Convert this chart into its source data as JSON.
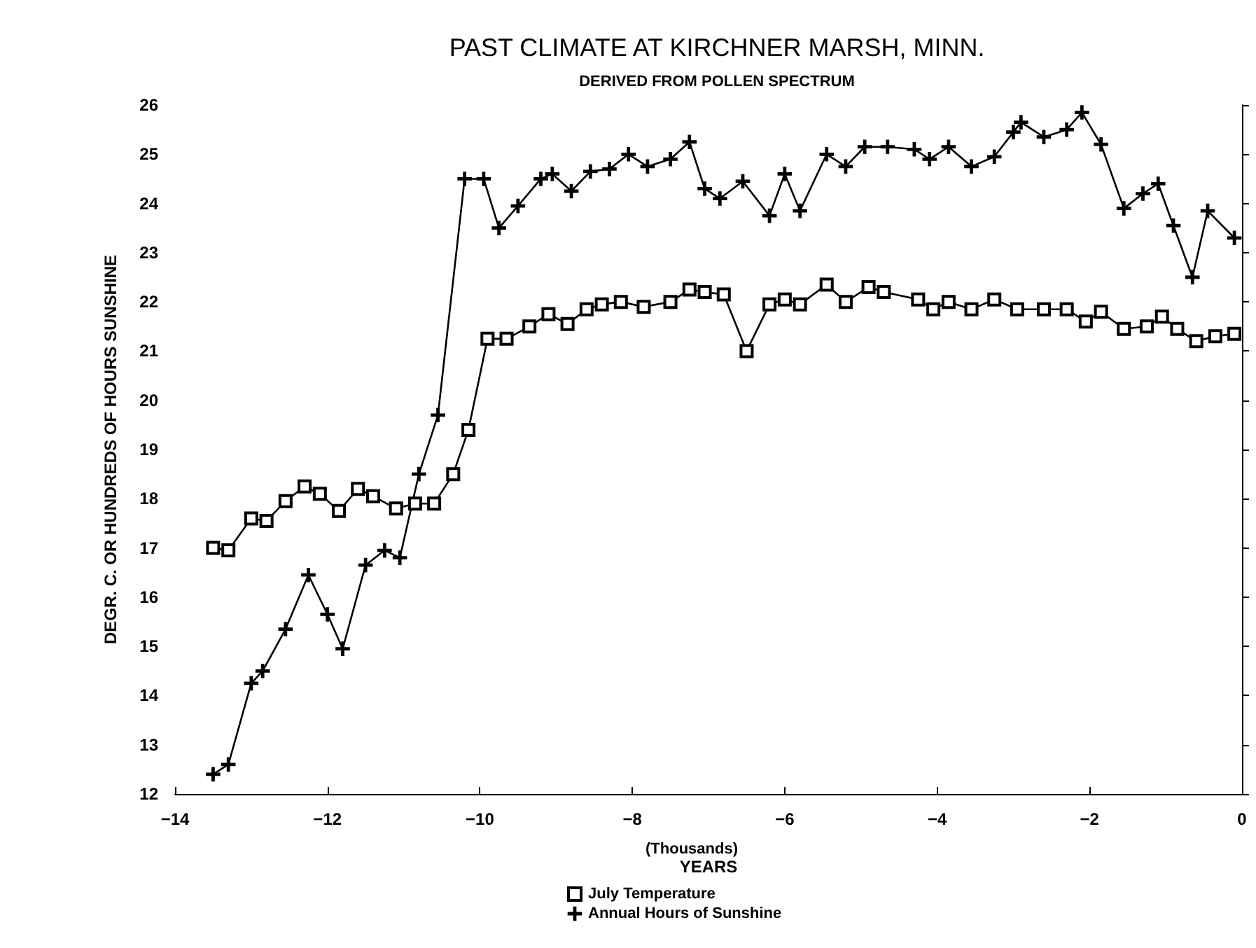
{
  "chart_data": {
    "type": "line",
    "title": "PAST CLIMATE AT KIRCHNER MARSH, MINN.",
    "subtitle": "DERIVED FROM POLLEN SPECTRUM",
    "xlabel": "YEARS",
    "ylabel": "DEGR. C. OR HUNDREDS OF HOURS SUNSHINE",
    "annotations": [
      "(Thousands)"
    ],
    "xlim": [
      -14,
      0
    ],
    "xticks": [
      -14,
      -12,
      -10,
      -8,
      -6,
      -4,
      -2,
      0
    ],
    "ylim": [
      12,
      26
    ],
    "yticks": [
      12,
      13,
      14,
      15,
      16,
      17,
      18,
      19,
      20,
      21,
      22,
      23,
      24,
      25,
      26
    ],
    "grid": false,
    "legend": "bottom",
    "line_style": "solid",
    "series": [
      {
        "name": "July Temperature",
        "color": "#000000",
        "marker": "square",
        "x": [
          -13.5,
          -13.3,
          -13.0,
          -12.8,
          -12.55,
          -12.3,
          -12.1,
          -11.85,
          -11.6,
          -11.4,
          -11.1,
          -10.85,
          -10.6,
          -10.35,
          -10.15,
          -9.9,
          -9.65,
          -9.35,
          -9.1,
          -8.85,
          -8.6,
          -8.4,
          -8.15,
          -7.85,
          -7.5,
          -7.25,
          -7.05,
          -6.8,
          -6.5,
          -6.2,
          -6.0,
          -5.8,
          -5.45,
          -5.2,
          -4.9,
          -4.7,
          -4.25,
          -4.05,
          -3.85,
          -3.55,
          -3.25,
          -2.95,
          -2.6,
          -2.3,
          -2.05,
          -1.85,
          -1.55,
          -1.25,
          -1.05,
          -0.85,
          -0.6,
          -0.35,
          -0.1
        ],
        "values": [
          17.0,
          16.95,
          17.6,
          17.55,
          17.95,
          18.25,
          18.1,
          17.75,
          18.2,
          18.05,
          17.8,
          17.9,
          17.9,
          18.5,
          19.4,
          21.25,
          21.25,
          21.5,
          21.75,
          21.55,
          21.85,
          21.95,
          22.0,
          21.9,
          22.0,
          22.25,
          22.2,
          22.15,
          21.0,
          21.95,
          22.05,
          21.95,
          22.35,
          22.0,
          22.3,
          22.2,
          22.05,
          21.85,
          22.0,
          21.85,
          22.05,
          21.85,
          21.85,
          21.85,
          21.6,
          21.8,
          21.45,
          21.5,
          21.7,
          21.45,
          21.2,
          21.3,
          21.35
        ]
      },
      {
        "name": "Annual Hours of Sunshine",
        "color": "#000000",
        "marker": "cross",
        "x": [
          -13.5,
          -13.3,
          -13.0,
          -12.85,
          -12.55,
          -12.25,
          -12.0,
          -11.8,
          -11.5,
          -11.25,
          -11.05,
          -10.8,
          -10.55,
          -10.2,
          -9.95,
          -9.75,
          -9.5,
          -9.2,
          -9.05,
          -8.8,
          -8.55,
          -8.3,
          -8.05,
          -7.8,
          -7.5,
          -7.25,
          -7.05,
          -6.85,
          -6.55,
          -6.2,
          -6.0,
          -5.8,
          -5.45,
          -5.2,
          -4.95,
          -4.65,
          -4.3,
          -4.1,
          -3.85,
          -3.55,
          -3.25,
          -3.0,
          -2.9,
          -2.6,
          -2.3,
          -2.1,
          -1.85,
          -1.55,
          -1.3,
          -1.1,
          -0.9,
          -0.65,
          -0.45,
          -0.1
        ],
        "values": [
          12.4,
          12.6,
          14.25,
          14.5,
          15.35,
          16.45,
          15.65,
          14.95,
          16.65,
          16.95,
          16.8,
          18.5,
          19.7,
          24.5,
          24.5,
          23.5,
          23.95,
          24.5,
          24.6,
          24.25,
          24.65,
          24.7,
          25.0,
          24.75,
          24.9,
          25.25,
          24.3,
          24.1,
          24.45,
          23.75,
          24.6,
          23.85,
          25.0,
          24.75,
          25.15,
          25.15,
          25.1,
          24.9,
          25.15,
          24.75,
          24.95,
          25.45,
          25.65,
          25.35,
          25.5,
          25.85,
          25.2,
          23.9,
          24.2,
          24.4,
          23.55,
          22.5,
          23.85,
          23.3
        ]
      }
    ]
  }
}
